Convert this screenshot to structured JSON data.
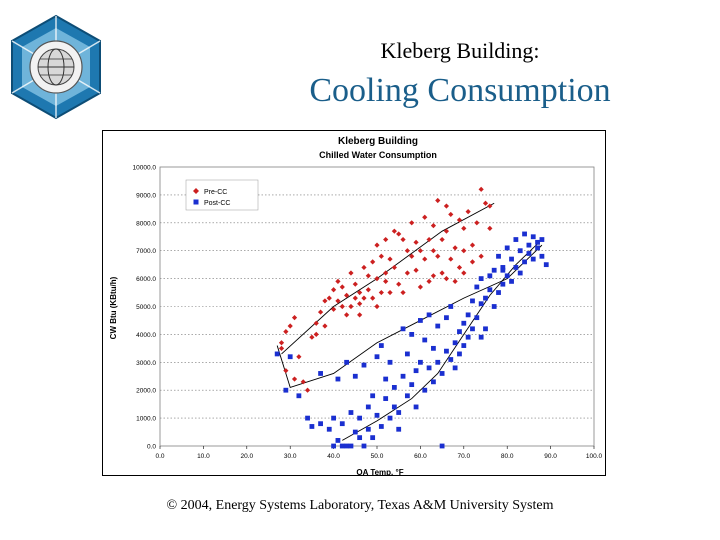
{
  "slide": {
    "title_line1": "Kleberg Building:",
    "title_line2": "Cooling Consumption",
    "footer": "© 2004, Energy Systems Laboratory, Texas A&M University System",
    "title_color": "#1a5e8a",
    "logo_icon": "esl-globe-hexagon-logo-icon"
  },
  "chart_data": {
    "type": "scatter",
    "title": "Kleberg Building",
    "subtitle": "Chilled Water Consumption",
    "xlabel": "OA Temp. °F",
    "ylabel": "CW Btu (KBtu/h)",
    "xlim": [
      0,
      100
    ],
    "ylim": [
      0,
      10000
    ],
    "x_ticks": [
      "0.0",
      "10.0",
      "20.0",
      "30.0",
      "40.0",
      "50.0",
      "60.0",
      "70.0",
      "80.0",
      "90.0",
      "100.0"
    ],
    "y_ticks": [
      "0.0",
      "1000.0",
      "2000.0",
      "3000.0",
      "4000.0",
      "5000.0",
      "6000.0",
      "7000.0",
      "8000.0",
      "9000.0",
      "10000.0"
    ],
    "grid": "horizontal dotted",
    "legend_position": "top-left",
    "series": [
      {
        "name": "Pre-CC",
        "color": "#cc2020",
        "marker": "diamond",
        "points": [
          [
            28,
            3700
          ],
          [
            28,
            3500
          ],
          [
            29,
            4100
          ],
          [
            30,
            4300
          ],
          [
            31,
            4600
          ],
          [
            29,
            2700
          ],
          [
            31,
            2400
          ],
          [
            33,
            2300
          ],
          [
            34,
            2000
          ],
          [
            32,
            3200
          ],
          [
            35,
            3900
          ],
          [
            36,
            4000
          ],
          [
            36,
            4400
          ],
          [
            37,
            4800
          ],
          [
            38,
            5200
          ],
          [
            38,
            4300
          ],
          [
            39,
            5300
          ],
          [
            40,
            4900
          ],
          [
            40,
            5600
          ],
          [
            41,
            5200
          ],
          [
            41,
            5900
          ],
          [
            42,
            5000
          ],
          [
            42,
            5700
          ],
          [
            43,
            5400
          ],
          [
            43,
            4700
          ],
          [
            44,
            6200
          ],
          [
            44,
            5000
          ],
          [
            45,
            5300
          ],
          [
            45,
            5800
          ],
          [
            46,
            5500
          ],
          [
            46,
            4700
          ],
          [
            47,
            6400
          ],
          [
            47,
            5300
          ],
          [
            48,
            6100
          ],
          [
            48,
            5600
          ],
          [
            49,
            6600
          ],
          [
            49,
            5300
          ],
          [
            50,
            6000
          ],
          [
            50,
            7200
          ],
          [
            50,
            5000
          ],
          [
            51,
            6800
          ],
          [
            51,
            5500
          ],
          [
            52,
            5900
          ],
          [
            52,
            7400
          ],
          [
            53,
            6700
          ],
          [
            53,
            5500
          ],
          [
            54,
            6400
          ],
          [
            54,
            7700
          ],
          [
            55,
            7600
          ],
          [
            55,
            5800
          ],
          [
            56,
            7400
          ],
          [
            56,
            5500
          ],
          [
            57,
            7000
          ],
          [
            57,
            6200
          ],
          [
            58,
            8000
          ],
          [
            58,
            6800
          ],
          [
            59,
            7300
          ],
          [
            60,
            7000
          ],
          [
            60,
            5700
          ],
          [
            61,
            6700
          ],
          [
            61,
            8200
          ],
          [
            62,
            7400
          ],
          [
            62,
            5900
          ],
          [
            63,
            6100
          ],
          [
            63,
            7900
          ],
          [
            64,
            6800
          ],
          [
            64,
            8800
          ],
          [
            65,
            7400
          ],
          [
            65,
            6200
          ],
          [
            66,
            7700
          ],
          [
            66,
            6000
          ],
          [
            67,
            8300
          ],
          [
            67,
            6700
          ],
          [
            68,
            7100
          ],
          [
            68,
            5900
          ],
          [
            69,
            8100
          ],
          [
            69,
            6400
          ],
          [
            70,
            7800
          ],
          [
            70,
            6200
          ],
          [
            71,
            8400
          ],
          [
            72,
            7200
          ],
          [
            72,
            6600
          ],
          [
            73,
            8000
          ],
          [
            74,
            9200
          ],
          [
            74,
            6800
          ],
          [
            75,
            8700
          ],
          [
            76,
            8600
          ],
          [
            76,
            7800
          ],
          [
            63,
            7000
          ],
          [
            59,
            6300
          ],
          [
            46,
            5100
          ],
          [
            52,
            6200
          ],
          [
            66,
            8600
          ],
          [
            70,
            7000
          ]
        ],
        "fit_line": [
          [
            28,
            3300
          ],
          [
            40,
            5000
          ],
          [
            50,
            6000
          ],
          [
            65,
            7700
          ],
          [
            77,
            8700
          ]
        ]
      },
      {
        "name": "Post-CC",
        "color": "#1a2fd0",
        "marker": "square",
        "points": [
          [
            27,
            3300
          ],
          [
            29,
            2000
          ],
          [
            30,
            3200
          ],
          [
            32,
            1800
          ],
          [
            34,
            1000
          ],
          [
            35,
            700
          ],
          [
            37,
            800
          ],
          [
            37,
            2600
          ],
          [
            39,
            600
          ],
          [
            40,
            1000
          ],
          [
            40,
            0
          ],
          [
            41,
            200
          ],
          [
            41,
            2400
          ],
          [
            42,
            800
          ],
          [
            42,
            0
          ],
          [
            43,
            0
          ],
          [
            43,
            3000
          ],
          [
            44,
            1200
          ],
          [
            44,
            0
          ],
          [
            45,
            2500
          ],
          [
            45,
            500
          ],
          [
            46,
            1000
          ],
          [
            46,
            300
          ],
          [
            47,
            0
          ],
          [
            47,
            2900
          ],
          [
            48,
            1400
          ],
          [
            48,
            600
          ],
          [
            49,
            1800
          ],
          [
            49,
            300
          ],
          [
            50,
            1100
          ],
          [
            50,
            3200
          ],
          [
            51,
            700
          ],
          [
            51,
            3600
          ],
          [
            52,
            1700
          ],
          [
            52,
            2400
          ],
          [
            53,
            1000
          ],
          [
            53,
            3000
          ],
          [
            54,
            1400
          ],
          [
            54,
            2100
          ],
          [
            55,
            600
          ],
          [
            55,
            1200
          ],
          [
            56,
            2500
          ],
          [
            56,
            4200
          ],
          [
            57,
            1800
          ],
          [
            57,
            3300
          ],
          [
            58,
            2200
          ],
          [
            58,
            4000
          ],
          [
            59,
            1400
          ],
          [
            59,
            2700
          ],
          [
            60,
            3000
          ],
          [
            60,
            4500
          ],
          [
            61,
            2000
          ],
          [
            61,
            3800
          ],
          [
            62,
            2800
          ],
          [
            62,
            4700
          ],
          [
            63,
            2300
          ],
          [
            63,
            3500
          ],
          [
            64,
            3000
          ],
          [
            64,
            4300
          ],
          [
            65,
            2600
          ],
          [
            65,
            0
          ],
          [
            66,
            3400
          ],
          [
            66,
            4600
          ],
          [
            67,
            3100
          ],
          [
            67,
            5000
          ],
          [
            68,
            3700
          ],
          [
            68,
            2800
          ],
          [
            69,
            4100
          ],
          [
            69,
            3300
          ],
          [
            70,
            4400
          ],
          [
            70,
            3600
          ],
          [
            71,
            4700
          ],
          [
            71,
            3900
          ],
          [
            72,
            4200
          ],
          [
            72,
            5200
          ],
          [
            73,
            4600
          ],
          [
            73,
            5700
          ],
          [
            74,
            3900
          ],
          [
            74,
            5100
          ],
          [
            75,
            5300
          ],
          [
            75,
            4200
          ],
          [
            76,
            5600
          ],
          [
            76,
            6100
          ],
          [
            77,
            5000
          ],
          [
            77,
            6300
          ],
          [
            78,
            5500
          ],
          [
            78,
            6800
          ],
          [
            79,
            5800
          ],
          [
            79,
            6400
          ],
          [
            80,
            6100
          ],
          [
            80,
            7100
          ],
          [
            81,
            5900
          ],
          [
            81,
            6700
          ],
          [
            82,
            6400
          ],
          [
            82,
            7400
          ],
          [
            83,
            6200
          ],
          [
            83,
            7000
          ],
          [
            84,
            6600
          ],
          [
            84,
            7600
          ],
          [
            85,
            6900
          ],
          [
            85,
            7200
          ],
          [
            86,
            7500
          ],
          [
            86,
            6700
          ],
          [
            87,
            7300
          ],
          [
            87,
            7100
          ],
          [
            88,
            7400
          ],
          [
            88,
            6800
          ],
          [
            89,
            6500
          ],
          [
            74,
            6000
          ],
          [
            79,
            6300
          ]
        ],
        "fit_line": [
          [
            27,
            3600
          ],
          [
            30,
            2100
          ],
          [
            40,
            2600
          ],
          [
            50,
            3700
          ],
          [
            60,
            4500
          ],
          [
            70,
            5300
          ],
          [
            80,
            6000
          ],
          [
            88,
            7200
          ]
        ],
        "fit_line_2": [
          [
            42,
            200
          ],
          [
            50,
            900
          ],
          [
            58,
            1700
          ],
          [
            64,
            2600
          ],
          [
            70,
            4000
          ],
          [
            76,
            5400
          ],
          [
            82,
            6500
          ],
          [
            88,
            7400
          ]
        ]
      }
    ]
  }
}
